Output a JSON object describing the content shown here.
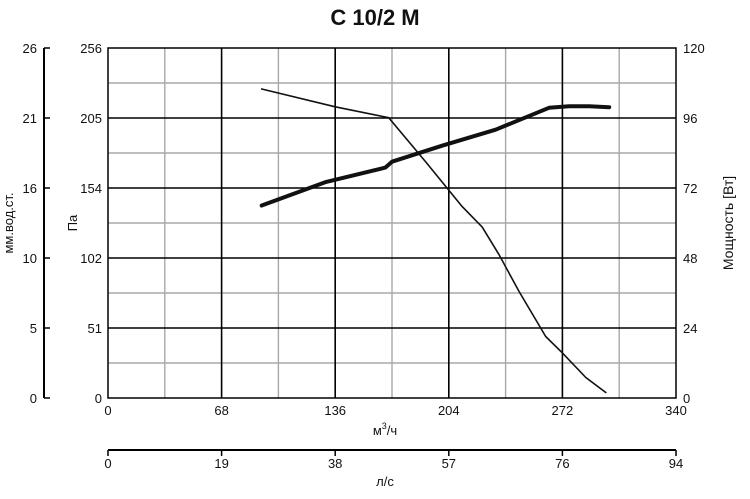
{
  "chart_data": {
    "type": "line",
    "title": "C 10/2 M",
    "x_primary": {
      "label_main": "м",
      "label_sup": "3",
      "label_tail": "/ч",
      "range": [
        0,
        340
      ],
      "ticks": [
        "0",
        "68",
        "136",
        "204",
        "272",
        "340"
      ]
    },
    "x_secondary": {
      "label": "л/с",
      "range": [
        0,
        94
      ],
      "ticks": [
        "0",
        "19",
        "38",
        "57",
        "76",
        "94"
      ]
    },
    "y_left_outer": {
      "label": "мм.вод.ст.",
      "range": [
        0,
        26
      ],
      "ticks": [
        "0",
        "5",
        "10",
        "16",
        "21",
        "26"
      ]
    },
    "y_left_inner": {
      "label": "Па",
      "range": [
        0,
        256
      ],
      "ticks": [
        "0",
        "51",
        "102",
        "154",
        "205",
        "256"
      ]
    },
    "y_right": {
      "label": "Мощность [Вт]",
      "range": [
        0,
        120
      ],
      "ticks": [
        "0",
        "24",
        "48",
        "72",
        "96",
        "120"
      ]
    },
    "grid": true,
    "series": [
      {
        "axis": "pressure",
        "color": "#111111",
        "weight": "thin",
        "points": [
          [
            92,
            226
          ],
          [
            136,
            213
          ],
          [
            168,
            205
          ],
          [
            190,
            173
          ],
          [
            212,
            140
          ],
          [
            224,
            125
          ],
          [
            234,
            105
          ],
          [
            246,
            78
          ],
          [
            262,
            45
          ],
          [
            272,
            33
          ],
          [
            286,
            15
          ],
          [
            298,
            4
          ]
        ]
      },
      {
        "axis": "power",
        "color": "#111111",
        "weight": "thick",
        "points": [
          [
            92,
            66
          ],
          [
            130,
            74
          ],
          [
            166,
            79
          ],
          [
            170,
            81
          ],
          [
            200,
            86.5
          ],
          [
            232,
            92
          ],
          [
            264,
            99.5
          ],
          [
            276,
            100
          ],
          [
            288,
            100
          ],
          [
            300,
            99.7
          ]
        ]
      }
    ]
  }
}
